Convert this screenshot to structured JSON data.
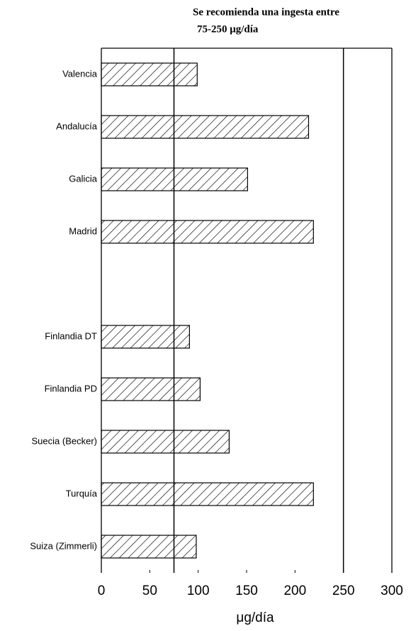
{
  "chart_data": {
    "type": "barh",
    "title": "Se recomienda una ingesta entre",
    "subtitle": "75-250 μg/día",
    "x_label": "μg/día",
    "categories": [
      "Valencia",
      "Andalucía",
      "Galicia",
      "Madrid",
      null,
      "Finlandia DT",
      "Finlandia PD",
      "Suecia (Becker)",
      "Turquía",
      "Suiza (Zimmerli)"
    ],
    "values": [
      99,
      214,
      151,
      219,
      null,
      91,
      102,
      132,
      219,
      98
    ],
    "xlim": [
      0,
      300
    ],
    "xticks": [
      0,
      50,
      100,
      150,
      200,
      250,
      300
    ],
    "reference_lines": [
      75,
      250
    ],
    "grid": false,
    "color": "#000000"
  }
}
